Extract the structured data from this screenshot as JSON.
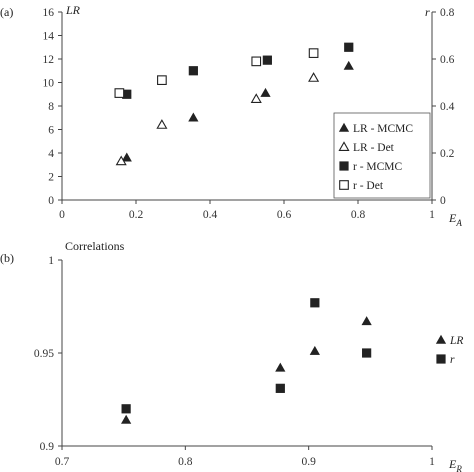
{
  "chart_data": [
    {
      "panel_label": "(a)",
      "type": "scatter",
      "xlabel_main": "E",
      "xlabel_sub": "A",
      "ylabel_left": "LR",
      "ylabel_right": "r",
      "xlim": [
        0,
        1
      ],
      "ylim_left": [
        0,
        16
      ],
      "ylim_right": [
        0,
        0.8
      ],
      "xticks": [
        "0",
        "0.2",
        "0.4",
        "0.6",
        "0.8",
        "1"
      ],
      "yticks_left": [
        "0",
        "2",
        "4",
        "6",
        "8",
        "10",
        "12",
        "14",
        "16"
      ],
      "yticks_right": [
        "0",
        "0.2",
        "0.4",
        "0.6",
        "0.8"
      ],
      "legend_position": "bottom-right",
      "series": [
        {
          "name": "LR - MCMC",
          "axis": "left",
          "marker": "triangle-filled",
          "points": [
            [
              0.175,
              3.6
            ],
            [
              0.355,
              7.0
            ],
            [
              0.55,
              9.1
            ],
            [
              0.775,
              11.4
            ]
          ]
        },
        {
          "name": "LR - Det",
          "axis": "left",
          "marker": "triangle-open",
          "points": [
            [
              0.16,
              3.3
            ],
            [
              0.27,
              6.4
            ],
            [
              0.525,
              8.6
            ],
            [
              0.68,
              10.4
            ]
          ]
        },
        {
          "name": "r - MCMC",
          "axis": "right",
          "marker": "square-filled",
          "points": [
            [
              0.175,
              0.45
            ],
            [
              0.355,
              0.55
            ],
            [
              0.555,
              0.595
            ],
            [
              0.775,
              0.65
            ]
          ]
        },
        {
          "name": "r - Det",
          "axis": "right",
          "marker": "square-open",
          "points": [
            [
              0.155,
              0.455
            ],
            [
              0.27,
              0.51
            ],
            [
              0.525,
              0.59
            ],
            [
              0.68,
              0.625
            ]
          ]
        }
      ]
    },
    {
      "panel_label": "(b)",
      "type": "scatter",
      "title": "Correlations",
      "xlabel_main": "E",
      "xlabel_sub": "R",
      "xlim": [
        0.7,
        1
      ],
      "ylim": [
        0.9,
        1
      ],
      "xticks": [
        "0.7",
        "0.8",
        "0.9",
        "1"
      ],
      "yticks": [
        "0.9",
        "0.95",
        "1"
      ],
      "legend_position": "right",
      "series": [
        {
          "name": "LR",
          "marker": "triangle-filled",
          "points": [
            [
              0.752,
              0.914
            ],
            [
              0.877,
              0.942
            ],
            [
              0.905,
              0.951
            ],
            [
              0.947,
              0.967
            ]
          ]
        },
        {
          "name": "r",
          "marker": "square-filled",
          "points": [
            [
              0.752,
              0.92
            ],
            [
              0.877,
              0.931
            ],
            [
              0.905,
              0.977
            ],
            [
              0.947,
              0.95
            ]
          ]
        }
      ]
    }
  ]
}
